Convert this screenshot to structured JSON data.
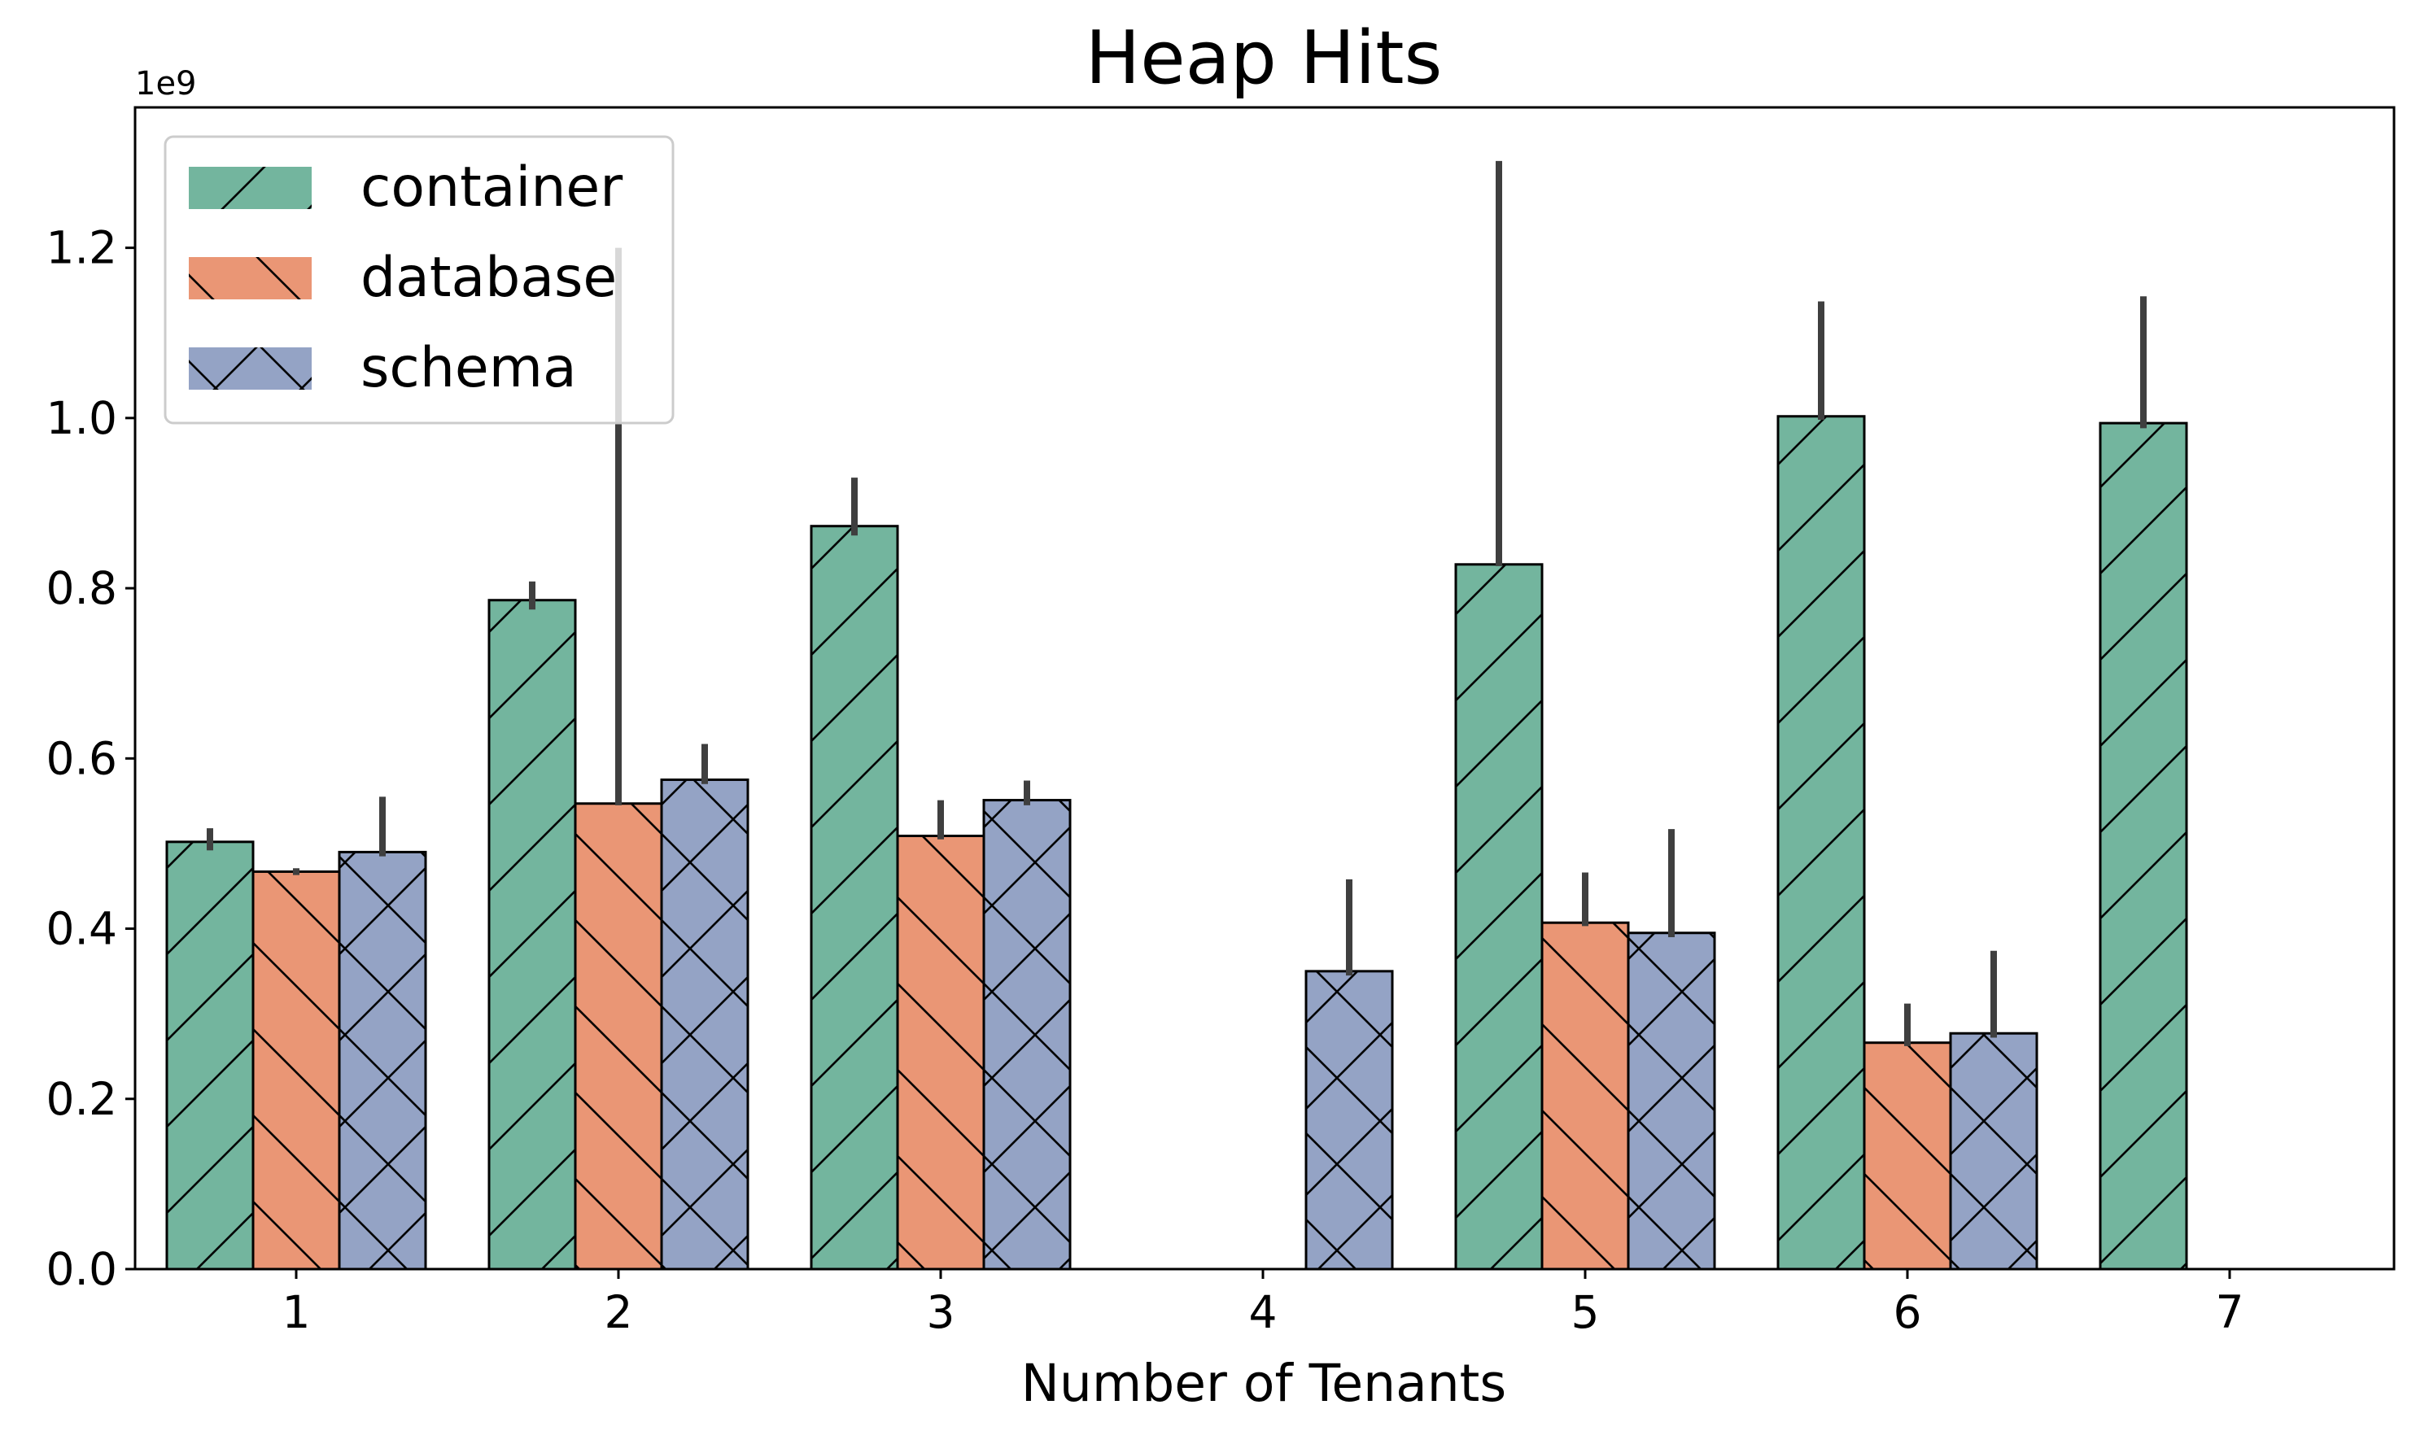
{
  "chart_data": {
    "type": "bar",
    "title": "Heap Hits",
    "xlabel": "Number of Tenants",
    "ylabel": "",
    "y_offset_label": "1e9",
    "categories": [
      "1",
      "2",
      "3",
      "4",
      "5",
      "6",
      "7"
    ],
    "ylim": [
      0,
      1.365
    ],
    "yticks": [
      "0.0",
      "0.2",
      "0.4",
      "0.6",
      "0.8",
      "1.0",
      "1.2"
    ],
    "grid": false,
    "legend_position": "top-left",
    "series": [
      {
        "name": "container",
        "color": "#73b59e",
        "hatch": "forward-slash",
        "values": [
          0.502,
          0.786,
          0.873,
          null,
          0.828,
          1.002,
          0.994
        ],
        "err_low": [
          0.492,
          0.775,
          0.862,
          null,
          0.826,
          0.998,
          0.988
        ],
        "err_high": [
          0.518,
          0.808,
          0.93,
          null,
          1.302,
          1.137,
          1.143
        ]
      },
      {
        "name": "database",
        "color": "#ea9675",
        "hatch": "back-slash",
        "values": [
          0.467,
          0.547,
          0.509,
          null,
          0.407,
          0.266,
          null
        ],
        "err_low": [
          0.463,
          0.545,
          0.505,
          null,
          0.403,
          0.262,
          null
        ],
        "err_high": [
          0.471,
          1.2,
          0.551,
          null,
          0.466,
          0.312,
          null
        ]
      },
      {
        "name": "schema",
        "color": "#94a3c5",
        "hatch": "cross",
        "values": [
          0.49,
          0.575,
          0.551,
          0.35,
          0.395,
          0.277,
          null
        ],
        "err_low": [
          0.485,
          0.57,
          0.545,
          0.345,
          0.39,
          0.272,
          null
        ],
        "err_high": [
          0.555,
          0.617,
          0.574,
          0.458,
          0.517,
          0.374,
          null
        ]
      }
    ]
  }
}
